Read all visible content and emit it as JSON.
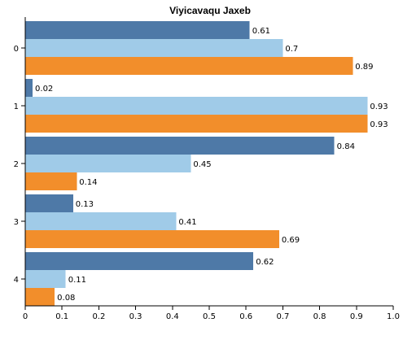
{
  "chart_data": {
    "type": "bar",
    "orientation": "horizontal",
    "title": "Viyicavaqu Jaxeb",
    "categories": [
      "0",
      "1",
      "2",
      "3",
      "4"
    ],
    "series": [
      {
        "values": [
          0.61,
          0.02,
          0.84,
          0.13,
          0.62
        ],
        "color": "#4e79a7"
      },
      {
        "values": [
          0.7,
          0.93,
          0.45,
          0.41,
          0.11
        ],
        "color": "#a0cbe8"
      },
      {
        "values": [
          0.89,
          0.93,
          0.14,
          0.69,
          0.08
        ],
        "color": "#f28e2b"
      }
    ],
    "xlim": [
      0,
      1
    ],
    "xticks": [
      "0",
      "0.1",
      "0.2",
      "0.3",
      "0.4",
      "0.5",
      "0.6",
      "0.7",
      "0.8",
      "0.9",
      "1.0"
    ],
    "xlabel": "",
    "ylabel": "",
    "grid": false,
    "legend": "none"
  }
}
